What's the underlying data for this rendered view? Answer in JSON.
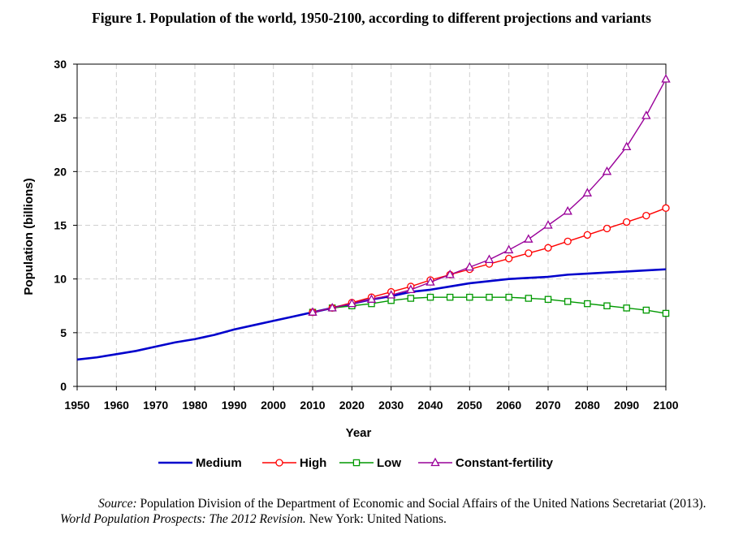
{
  "figure_title": "Figure 1.  Population of the world, 1950-2100, according to different projections and variants",
  "source": {
    "label": "Source:",
    "text1": " Population Division of the Department of Economic and Social Affairs of the United Nations Secretariat (2013).",
    "italic2": "World Population Prospects: The 2012 Revision.",
    "text2": " New York: United Nations."
  },
  "colors": {
    "medium": "#0000cc",
    "high": "#ff0000",
    "low": "#009900",
    "constant_fertility": "#990099",
    "grid": "#cfcfcf"
  },
  "chart_data": {
    "type": "line",
    "title": "Figure 1.  Population of the world, 1950-2100, according to different projections and variants",
    "xlabel": "Year",
    "ylabel": "Population (billions)",
    "xlim": [
      1950,
      2100
    ],
    "ylim": [
      0,
      30
    ],
    "x_ticks": [
      1950,
      1960,
      1970,
      1980,
      1990,
      2000,
      2010,
      2020,
      2030,
      2040,
      2050,
      2060,
      2070,
      2080,
      2090,
      2100
    ],
    "y_ticks": [
      0,
      5,
      10,
      15,
      20,
      25,
      30
    ],
    "grid": true,
    "legend_position": "bottom",
    "series": [
      {
        "name": "Medium",
        "key": "medium",
        "marker": "none",
        "x": [
          1950,
          1955,
          1960,
          1965,
          1970,
          1975,
          1980,
          1985,
          1990,
          1995,
          2000,
          2005,
          2010,
          2015,
          2020,
          2025,
          2030,
          2035,
          2040,
          2045,
          2050,
          2055,
          2060,
          2065,
          2070,
          2075,
          2080,
          2085,
          2090,
          2095,
          2100
        ],
        "values": [
          2.5,
          2.7,
          3.0,
          3.3,
          3.7,
          4.1,
          4.4,
          4.8,
          5.3,
          5.7,
          6.1,
          6.5,
          6.9,
          7.3,
          7.7,
          8.1,
          8.4,
          8.8,
          9.0,
          9.3,
          9.6,
          9.8,
          10.0,
          10.1,
          10.2,
          10.4,
          10.5,
          10.6,
          10.7,
          10.8,
          10.9
        ]
      },
      {
        "name": "High",
        "key": "high",
        "marker": "circle",
        "x": [
          2010,
          2015,
          2020,
          2025,
          2030,
          2035,
          2040,
          2045,
          2050,
          2055,
          2060,
          2065,
          2070,
          2075,
          2080,
          2085,
          2090,
          2095,
          2100
        ],
        "values": [
          6.9,
          7.3,
          7.8,
          8.3,
          8.8,
          9.3,
          9.9,
          10.4,
          10.9,
          11.4,
          11.9,
          12.4,
          12.9,
          13.5,
          14.1,
          14.7,
          15.3,
          15.9,
          16.6
        ]
      },
      {
        "name": "Low",
        "key": "low",
        "marker": "square",
        "x": [
          2010,
          2015,
          2020,
          2025,
          2030,
          2035,
          2040,
          2045,
          2050,
          2055,
          2060,
          2065,
          2070,
          2075,
          2080,
          2085,
          2090,
          2095,
          2100
        ],
        "values": [
          6.9,
          7.3,
          7.5,
          7.7,
          8.0,
          8.2,
          8.3,
          8.3,
          8.3,
          8.3,
          8.3,
          8.2,
          8.1,
          7.9,
          7.7,
          7.5,
          7.3,
          7.1,
          6.8
        ]
      },
      {
        "name": "Constant-fertility",
        "key": "constant_fertility",
        "marker": "triangle",
        "x": [
          2010,
          2015,
          2020,
          2025,
          2030,
          2035,
          2040,
          2045,
          2050,
          2055,
          2060,
          2065,
          2070,
          2075,
          2080,
          2085,
          2090,
          2095,
          2100
        ],
        "values": [
          6.9,
          7.3,
          7.7,
          8.1,
          8.5,
          9.0,
          9.7,
          10.4,
          11.1,
          11.8,
          12.7,
          13.7,
          15.0,
          16.3,
          18.0,
          20.0,
          22.3,
          25.2,
          28.6
        ]
      }
    ]
  }
}
